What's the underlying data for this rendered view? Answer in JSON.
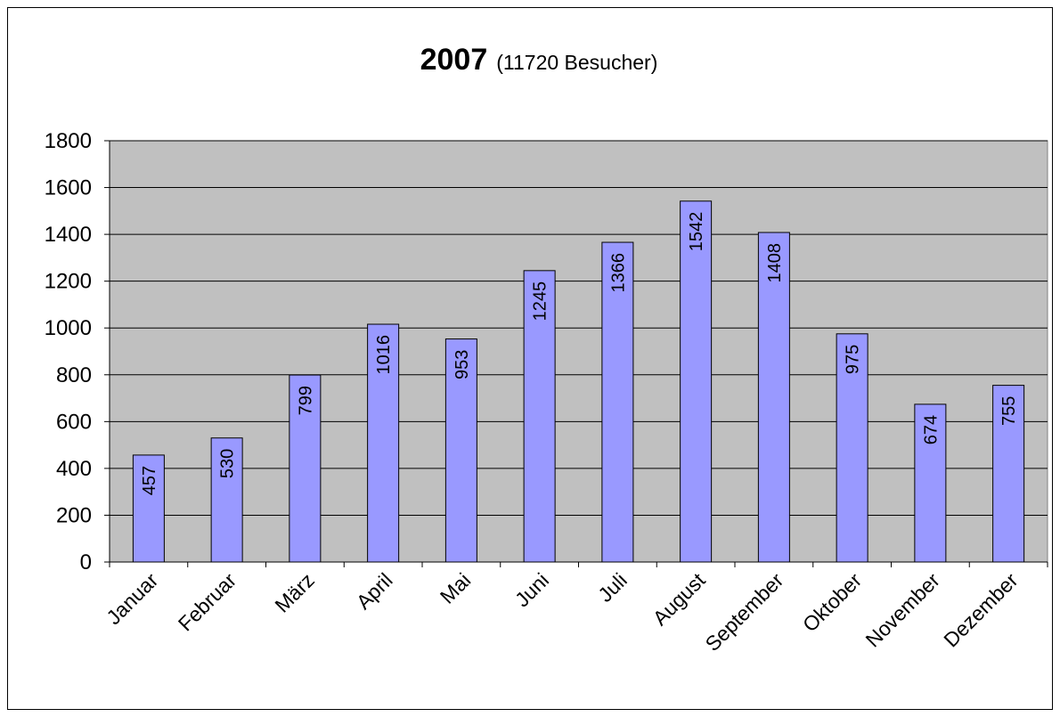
{
  "chart_data": {
    "type": "bar",
    "title": "2007",
    "subtitle": "(11720 Besucher)",
    "categories": [
      "Januar",
      "Februar",
      "März",
      "April",
      "Mai",
      "Juni",
      "Juli",
      "August",
      "September",
      "Oktober",
      "November",
      "Dezember"
    ],
    "values": [
      457,
      530,
      799,
      1016,
      953,
      1245,
      1366,
      1542,
      1408,
      975,
      674,
      755
    ],
    "color": "#9999ff",
    "plot_background": "#c0c0c0",
    "ylim": [
      0,
      1800
    ],
    "yticks": [
      0,
      200,
      400,
      600,
      800,
      1000,
      1200,
      1400,
      1600,
      1800
    ],
    "grid": true
  }
}
